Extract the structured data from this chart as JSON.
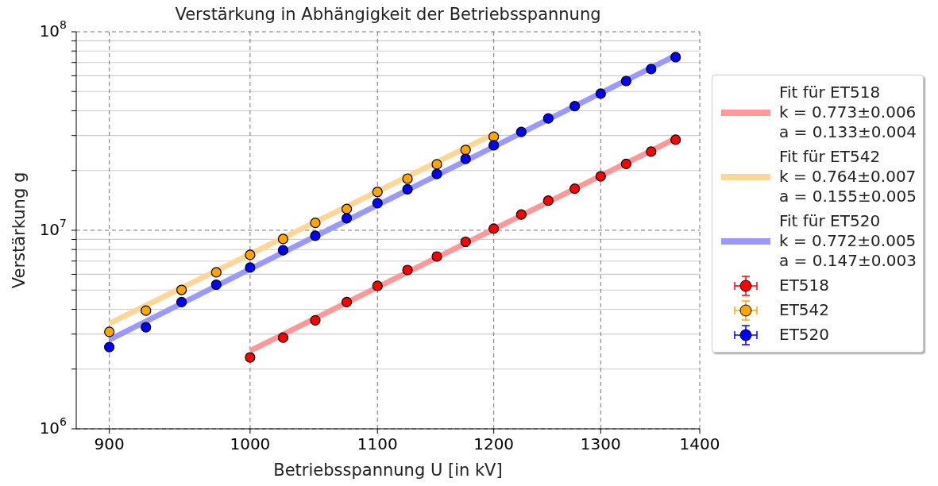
{
  "chart_data": {
    "type": "scatter",
    "title": "Verstärkung in Abhängigkeit der Betriebsspannung",
    "xlabel": "Betriebsspannung U [in kV]",
    "ylabel": "Verstärkung g",
    "log": "xy",
    "grid": true,
    "legend": "right",
    "marker": "circle",
    "xlim": [
      878,
      1400
    ],
    "xticks": [
      900,
      1000,
      1100,
      1200,
      1300,
      1400
    ],
    "ylim": [
      1000000,
      100000000
    ],
    "yticks": [
      {
        "value": 1000000,
        "label": "10$^{6}$"
      },
      {
        "value": 2000000,
        "label": null
      },
      {
        "value": 3000000,
        "label": null
      },
      {
        "value": 4000000,
        "label": null
      },
      {
        "value": 5000000,
        "label": null
      },
      {
        "value": 6000000,
        "label": null
      },
      {
        "value": 7000000,
        "label": null
      },
      {
        "value": 8000000,
        "label": null
      },
      {
        "value": 9000000,
        "label": null
      },
      {
        "value": 10000000,
        "label": "10$^{7}$"
      },
      {
        "value": 20000000,
        "label": null
      },
      {
        "value": 30000000,
        "label": null
      },
      {
        "value": 40000000,
        "label": null
      },
      {
        "value": 50000000,
        "label": null
      },
      {
        "value": 60000000,
        "label": null
      },
      {
        "value": 70000000,
        "label": null
      },
      {
        "value": 80000000,
        "label": null
      },
      {
        "value": 90000000,
        "label": null
      },
      {
        "value": 100000000,
        "label": "10$^{8}$"
      }
    ],
    "series": [
      {
        "type": "line",
        "marker": "none",
        "name": "Fit für ET518\nk = 0.773±0.006\na = 0.133±0.004",
        "color": "#ff9999",
        "x": [
          1000,
          1375
        ],
        "values": [
          2470000,
          29000000
        ]
      },
      {
        "type": "line",
        "marker": "none",
        "name": "Fit für ET542\nk = 0.764±0.007\na = 0.155±0.005",
        "color": "#ffd699",
        "x": [
          900,
          1200
        ],
        "values": [
          3390000,
          30500000
        ]
      },
      {
        "type": "line",
        "marker": "none",
        "name": "Fit für ET520\nk = 0.772±0.005\na = 0.147±0.003",
        "color": "#9999ff",
        "x": [
          900,
          1375
        ],
        "values": [
          2810000,
          76000000
        ]
      },
      {
        "name": "ET518",
        "color": "#ff0000",
        "x": [
          1000,
          1025,
          1050,
          1075,
          1100,
          1125,
          1150,
          1175,
          1200,
          1225,
          1250,
          1275,
          1300,
          1325,
          1350,
          1375
        ],
        "values": [
          2290000,
          2880000,
          3520000,
          4350000,
          5250000,
          6310000,
          7380000,
          8750000,
          10200000,
          12000000,
          14100000,
          16200000,
          18700000,
          21600000,
          24900000,
          28600000
        ]
      },
      {
        "name": "ET542",
        "color": "#ffa500",
        "x": [
          900,
          925,
          950,
          975,
          1000,
          1025,
          1050,
          1075,
          1100,
          1125,
          1150,
          1175,
          1200
        ],
        "values": [
          3080000,
          3940000,
          5010000,
          6140000,
          7520000,
          9040000,
          10900000,
          12800000,
          15600000,
          18200000,
          21500000,
          25400000,
          29600000
        ]
      },
      {
        "name": "ET520",
        "color": "#0000ff",
        "x": [
          900,
          925,
          950,
          975,
          1000,
          1025,
          1050,
          1075,
          1100,
          1125,
          1150,
          1175,
          1200,
          1225,
          1250,
          1275,
          1300,
          1325,
          1350,
          1375
        ],
        "values": [
          2580000,
          3250000,
          4350000,
          5320000,
          6490000,
          7940000,
          9380000,
          11500000,
          13700000,
          16100000,
          19200000,
          22900000,
          26800000,
          31300000,
          36600000,
          42200000,
          48800000,
          56500000,
          64900000,
          74500000
        ]
      }
    ]
  }
}
